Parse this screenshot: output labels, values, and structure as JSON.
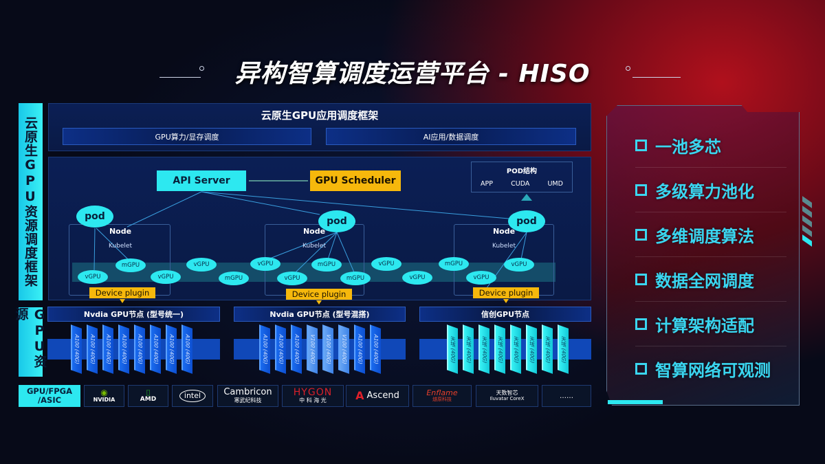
{
  "title": "异构智算调度运营平台 - HISO",
  "side_labels": {
    "framework": "云原生GPU资源调度框架",
    "resources": "GPU资源",
    "vendors": "GPU/FPGA /ASIC"
  },
  "top": {
    "title": "云原生GPU应用调度框架",
    "sub": [
      "GPU算力/显存调度",
      "AI应用/数据调度"
    ]
  },
  "control": {
    "api_server": "API Server",
    "scheduler": "GPU Scheduler"
  },
  "pod_struct": {
    "title": "POD结构",
    "parts": [
      "APP",
      "CUDA",
      "UMD"
    ]
  },
  "nodes": [
    {
      "pod": "pod",
      "label": "Node",
      "kubelet": "Kubelet",
      "plugin": "Device plugin"
    },
    {
      "pod": "pod",
      "label": "Node",
      "kubelet": "Kubelet",
      "plugin": "Device plugin"
    },
    {
      "pod": "pod",
      "label": "Node",
      "kubelet": "Kubelet",
      "plugin": "Device plugin"
    }
  ],
  "gpus": [
    "vGPU",
    "mGPU",
    "vGPU",
    "vGPU",
    "mGPU",
    "vGPU",
    "mGPU",
    "vGPU",
    "mGPU",
    "vGPU",
    "vGPU",
    "mGPU",
    "vGPU",
    "vGPU"
  ],
  "gpu_nodes": [
    {
      "title": "Nvdia GPU节点 (型号统一)",
      "chips": [
        "A100 (40G)",
        "A100 (40G)",
        "A100 (40G)",
        "A100 (40G)",
        "A100 (40G)",
        "A100 (40G)",
        "A100 (40G)",
        "A100 (40G)"
      ]
    },
    {
      "title": "Nvdia GPU节点 (型号混搭)",
      "chips": [
        "A100 (40G)",
        "A100 (40G)",
        "A100 (40G)",
        "V100 (40G)",
        "V100 (40G)",
        "V100 (40G)",
        "A100 (40G)",
        "A100 (40G)"
      ]
    },
    {
      "title": "信创GPU节点",
      "chips": [
        "天垓 (40G)",
        "天垓 (40G)",
        "天垓 (40G)",
        "天垓 (40G)",
        "天垓 (40G)",
        "天垓 (40G)",
        "天垓 (40G)",
        "天垓 (40G)"
      ]
    }
  ],
  "vendors": [
    {
      "name": "NVIDIA"
    },
    {
      "name": "AMD"
    },
    {
      "name": "intel"
    },
    {
      "name": "Cambricon",
      "sub": "寒武纪科技"
    },
    {
      "name": "HYGON",
      "sub": "中 科 海 光"
    },
    {
      "name": "Ascend"
    },
    {
      "name": "Enflame",
      "sub": "燧原科技"
    },
    {
      "name": "天数智芯",
      "sub": "Iluvatar CoreX"
    },
    {
      "name": "……"
    }
  ],
  "features": [
    "一池多芯",
    "多级算力池化",
    "多维调度算法",
    "数据全网调度",
    "计算架构适配",
    "智算网络可观测"
  ],
  "colors": {
    "accent_cyan": "#2de8f0",
    "accent_orange": "#f6b80c",
    "chip_blue": "#1a6cf0",
    "bg_red": "#b0101c"
  }
}
